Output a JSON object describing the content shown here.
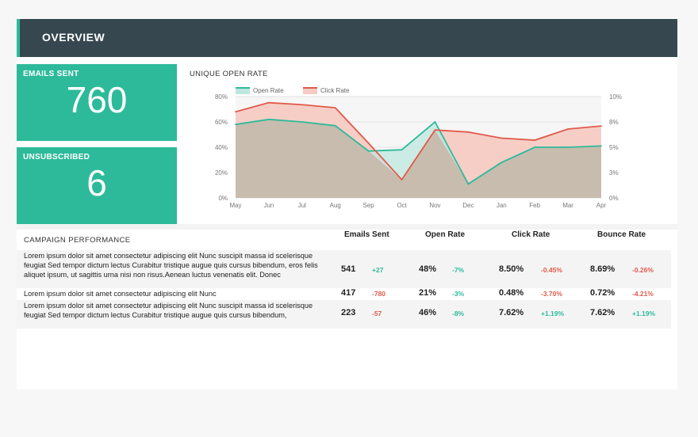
{
  "header": {
    "title": "OVERVIEW"
  },
  "kpis": {
    "emails_sent": {
      "label": "EMAILS SENT",
      "value": "760"
    },
    "unsubscribed": {
      "label": "UNSUBSCRIBED",
      "value": "6"
    }
  },
  "chart": {
    "title": "UNIQUE OPEN RATE",
    "legend": [
      "Open Rate",
      "Click Rate"
    ],
    "left_ticks": [
      "80%",
      "60%",
      "40%",
      "20%",
      "0%"
    ],
    "right_ticks": [
      "10%",
      "8%",
      "5%",
      "3%",
      "0%"
    ]
  },
  "chart_data": {
    "type": "area",
    "title": "UNIQUE OPEN RATE",
    "categories": [
      "May",
      "Jun",
      "Jul",
      "Aug",
      "Sep",
      "Oct",
      "Nov",
      "Dec",
      "Jan",
      "Feb",
      "Mar",
      "Apr"
    ],
    "series": [
      {
        "name": "Open Rate",
        "axis": "left",
        "color": "#2dba9a",
        "fill": "#bde7de",
        "values": [
          58,
          62,
          60,
          57,
          37,
          38,
          60,
          11,
          28,
          40,
          40,
          41
        ]
      },
      {
        "name": "Click Rate",
        "axis": "right",
        "color": "#e05a4b",
        "fill": "#f5cbc3",
        "values": [
          8.5,
          9.4,
          9.2,
          8.9,
          5.4,
          1.8,
          6.7,
          6.5,
          5.9,
          5.7,
          6.8,
          7.1
        ]
      }
    ],
    "ylim_left": [
      0,
      80
    ],
    "ylim_right": [
      0,
      10
    ],
    "grid": true,
    "legend_position": "top-left"
  },
  "campaign": {
    "title": "CAMPAIGN PERFORMANCE",
    "columns": [
      "Emails Sent",
      "Open Rate",
      "Click Rate",
      "Bounce Rate"
    ],
    "rows": [
      {
        "description": "Lorem ipsum dolor sit amet consectetur adipiscing elit Nunc suscipit massa id scelerisque feugiat Sed tempor dictum lectus Curabitur tristique augue quis cursus bibendum, eros felis aliquet ipsum, ut sagittis urna nisi non risus.Aenean luctus venenatis elit. Donec",
        "emails_sent": "541",
        "emails_change": "+27",
        "open_rate": "48%",
        "open_change": "-7%",
        "click_rate": "8.50%",
        "click_change": "-0.45%",
        "bounce_rate": "8.69%",
        "bounce_change": "-0.26%"
      },
      {
        "description": "Lorem ipsum dolor sit amet consectetur adipiscing elit Nunc",
        "emails_sent": "417",
        "emails_change": "-780",
        "open_rate": "21%",
        "open_change": "-3%",
        "click_rate": "0.48%",
        "click_change": "-3.70%",
        "bounce_rate": "0.72%",
        "bounce_change": "-4.21%"
      },
      {
        "description": "Lorem ipsum dolor sit amet consectetur adipiscing elit Nunc suscipit massa id scelerisque feugiat Sed tempor dictum lectus Curabitur tristique augue quis cursus bibendum,",
        "emails_sent": "223",
        "emails_change": "-57",
        "open_rate": "46%",
        "open_change": "-8%",
        "click_rate": "7.62%",
        "click_change": "+1.19%",
        "bounce_rate": "7.62%",
        "bounce_change": "+1.19%"
      }
    ]
  },
  "colors": {
    "accent": "#2dba9a",
    "header_bg": "#36474f",
    "negative": "#e05a4b"
  }
}
